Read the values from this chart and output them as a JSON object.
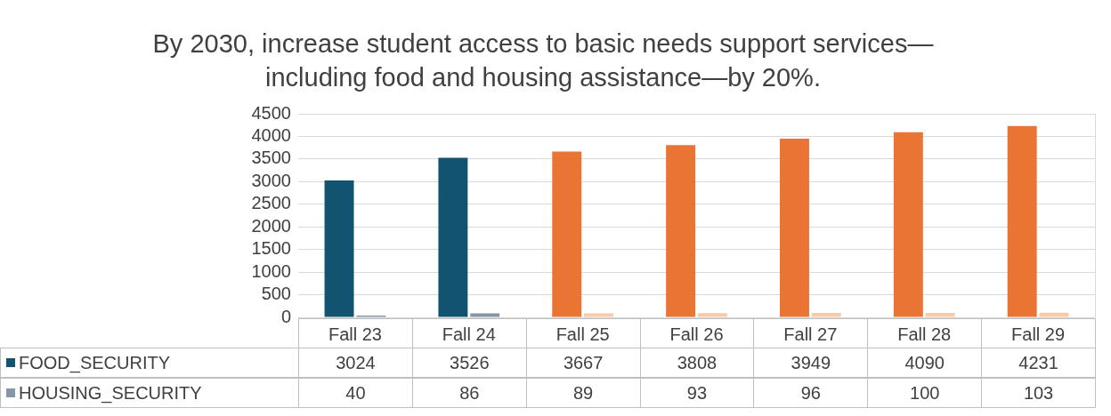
{
  "chart_data": {
    "type": "bar",
    "title": "By 2030, increase student access to basic needs support services—including food and housing assistance—by 20%.",
    "categories": [
      "Fall 23",
      "Fall 24",
      "Fall 25",
      "Fall 26",
      "Fall 27",
      "Fall 28",
      "Fall 29"
    ],
    "series": [
      {
        "name": "FOOD_SECURITY",
        "color": "#12546f",
        "colors": [
          "#12546f",
          "#12546f",
          "#ea7434",
          "#ea7434",
          "#ea7434",
          "#ea7434",
          "#ea7434"
        ],
        "values": [
          3024,
          3526,
          3667,
          3808,
          3949,
          4090,
          4231
        ]
      },
      {
        "name": "HOUSING_SECURITY",
        "color": "#8497a8",
        "colors": [
          "#8497a8",
          "#8497a8",
          "#f9c9a8",
          "#f9c9a8",
          "#f9c9a8",
          "#f9c9a8",
          "#f9c9a8"
        ],
        "values": [
          40,
          86,
          89,
          93,
          96,
          100,
          103
        ]
      }
    ],
    "ylim": [
      0,
      4500
    ],
    "yticks": [
      0,
      500,
      1000,
      1500,
      2000,
      2500,
      3000,
      3500,
      4000,
      4500
    ],
    "grid": "y",
    "legend": "bottom",
    "data_labels": true
  }
}
